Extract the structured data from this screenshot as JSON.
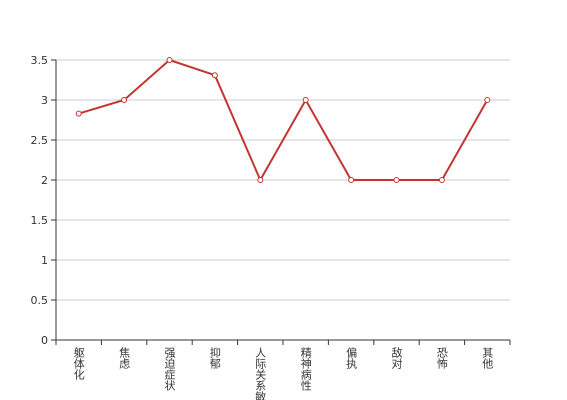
{
  "chart_data": {
    "type": "line",
    "categories": [
      "躯体化",
      "焦虑",
      "强迫症状",
      "抑郁",
      "人际关系敏感",
      "精神病性",
      "偏执",
      "敌对",
      "恐怖",
      "其他"
    ],
    "values": [
      2.83,
      3,
      3.5,
      3.31,
      2,
      3,
      2,
      2,
      2,
      3
    ],
    "color": "#c23531",
    "ylim": [
      0,
      3.5
    ],
    "yticks": [
      0,
      0.5,
      1,
      1.5,
      2,
      2.5,
      3,
      3.5
    ],
    "grid": true
  }
}
